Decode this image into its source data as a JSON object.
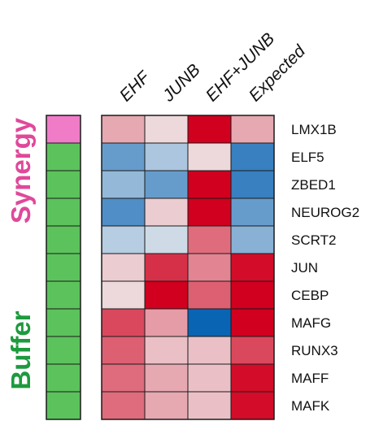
{
  "chart_data": {
    "type": "heatmap",
    "columns": [
      "EHF",
      "JUNB",
      "EHF+JUNB",
      "Expected"
    ],
    "rows": [
      "LMX1B",
      "ELF5",
      "ZBED1",
      "NEUROG2",
      "SCRT2",
      "JUN",
      "CEBP",
      "MAFG",
      "RUNX3",
      "MAFF",
      "MAFK"
    ],
    "row_groups": [
      {
        "label": "Synergy",
        "color": "#e0489a",
        "swatch": "#f07cc8",
        "count": 1
      },
      {
        "label": "Buffer",
        "color": "#1e9a3e",
        "swatch": "#5cc25c",
        "count": 10
      }
    ],
    "row_group_of": [
      "Synergy",
      "Buffer",
      "Buffer",
      "Buffer",
      "Buffer",
      "Buffer",
      "Buffer",
      "Buffer",
      "Buffer",
      "Buffer",
      "Buffer"
    ],
    "group_axis_labels": [
      {
        "label": "Synergy",
        "color": "#e0489a",
        "rows": [
          0,
          3
        ]
      },
      {
        "label": "Buffer",
        "color": "#1e9a3e",
        "rows": [
          6,
          10
        ]
      }
    ],
    "values": [
      [
        0.3,
        0.1,
        1.0,
        0.3
      ],
      [
        -0.6,
        -0.3,
        0.1,
        -0.8
      ],
      [
        -0.4,
        -0.6,
        1.0,
        -0.8
      ],
      [
        -0.7,
        0.15,
        1.0,
        -0.6
      ],
      [
        -0.25,
        -0.15,
        0.55,
        -0.45
      ],
      [
        0.15,
        0.8,
        0.45,
        0.95
      ],
      [
        0.1,
        1.0,
        0.6,
        1.0
      ],
      [
        0.7,
        0.35,
        -1.0,
        1.0
      ],
      [
        0.6,
        0.2,
        0.2,
        0.7
      ],
      [
        0.55,
        0.3,
        0.2,
        0.95
      ],
      [
        0.55,
        0.3,
        0.2,
        0.95
      ]
    ],
    "color_scale": {
      "min": -1,
      "max": 1,
      "low": "#0a64b4",
      "mid": "#f0f0f0",
      "high": "#d0001e"
    }
  }
}
